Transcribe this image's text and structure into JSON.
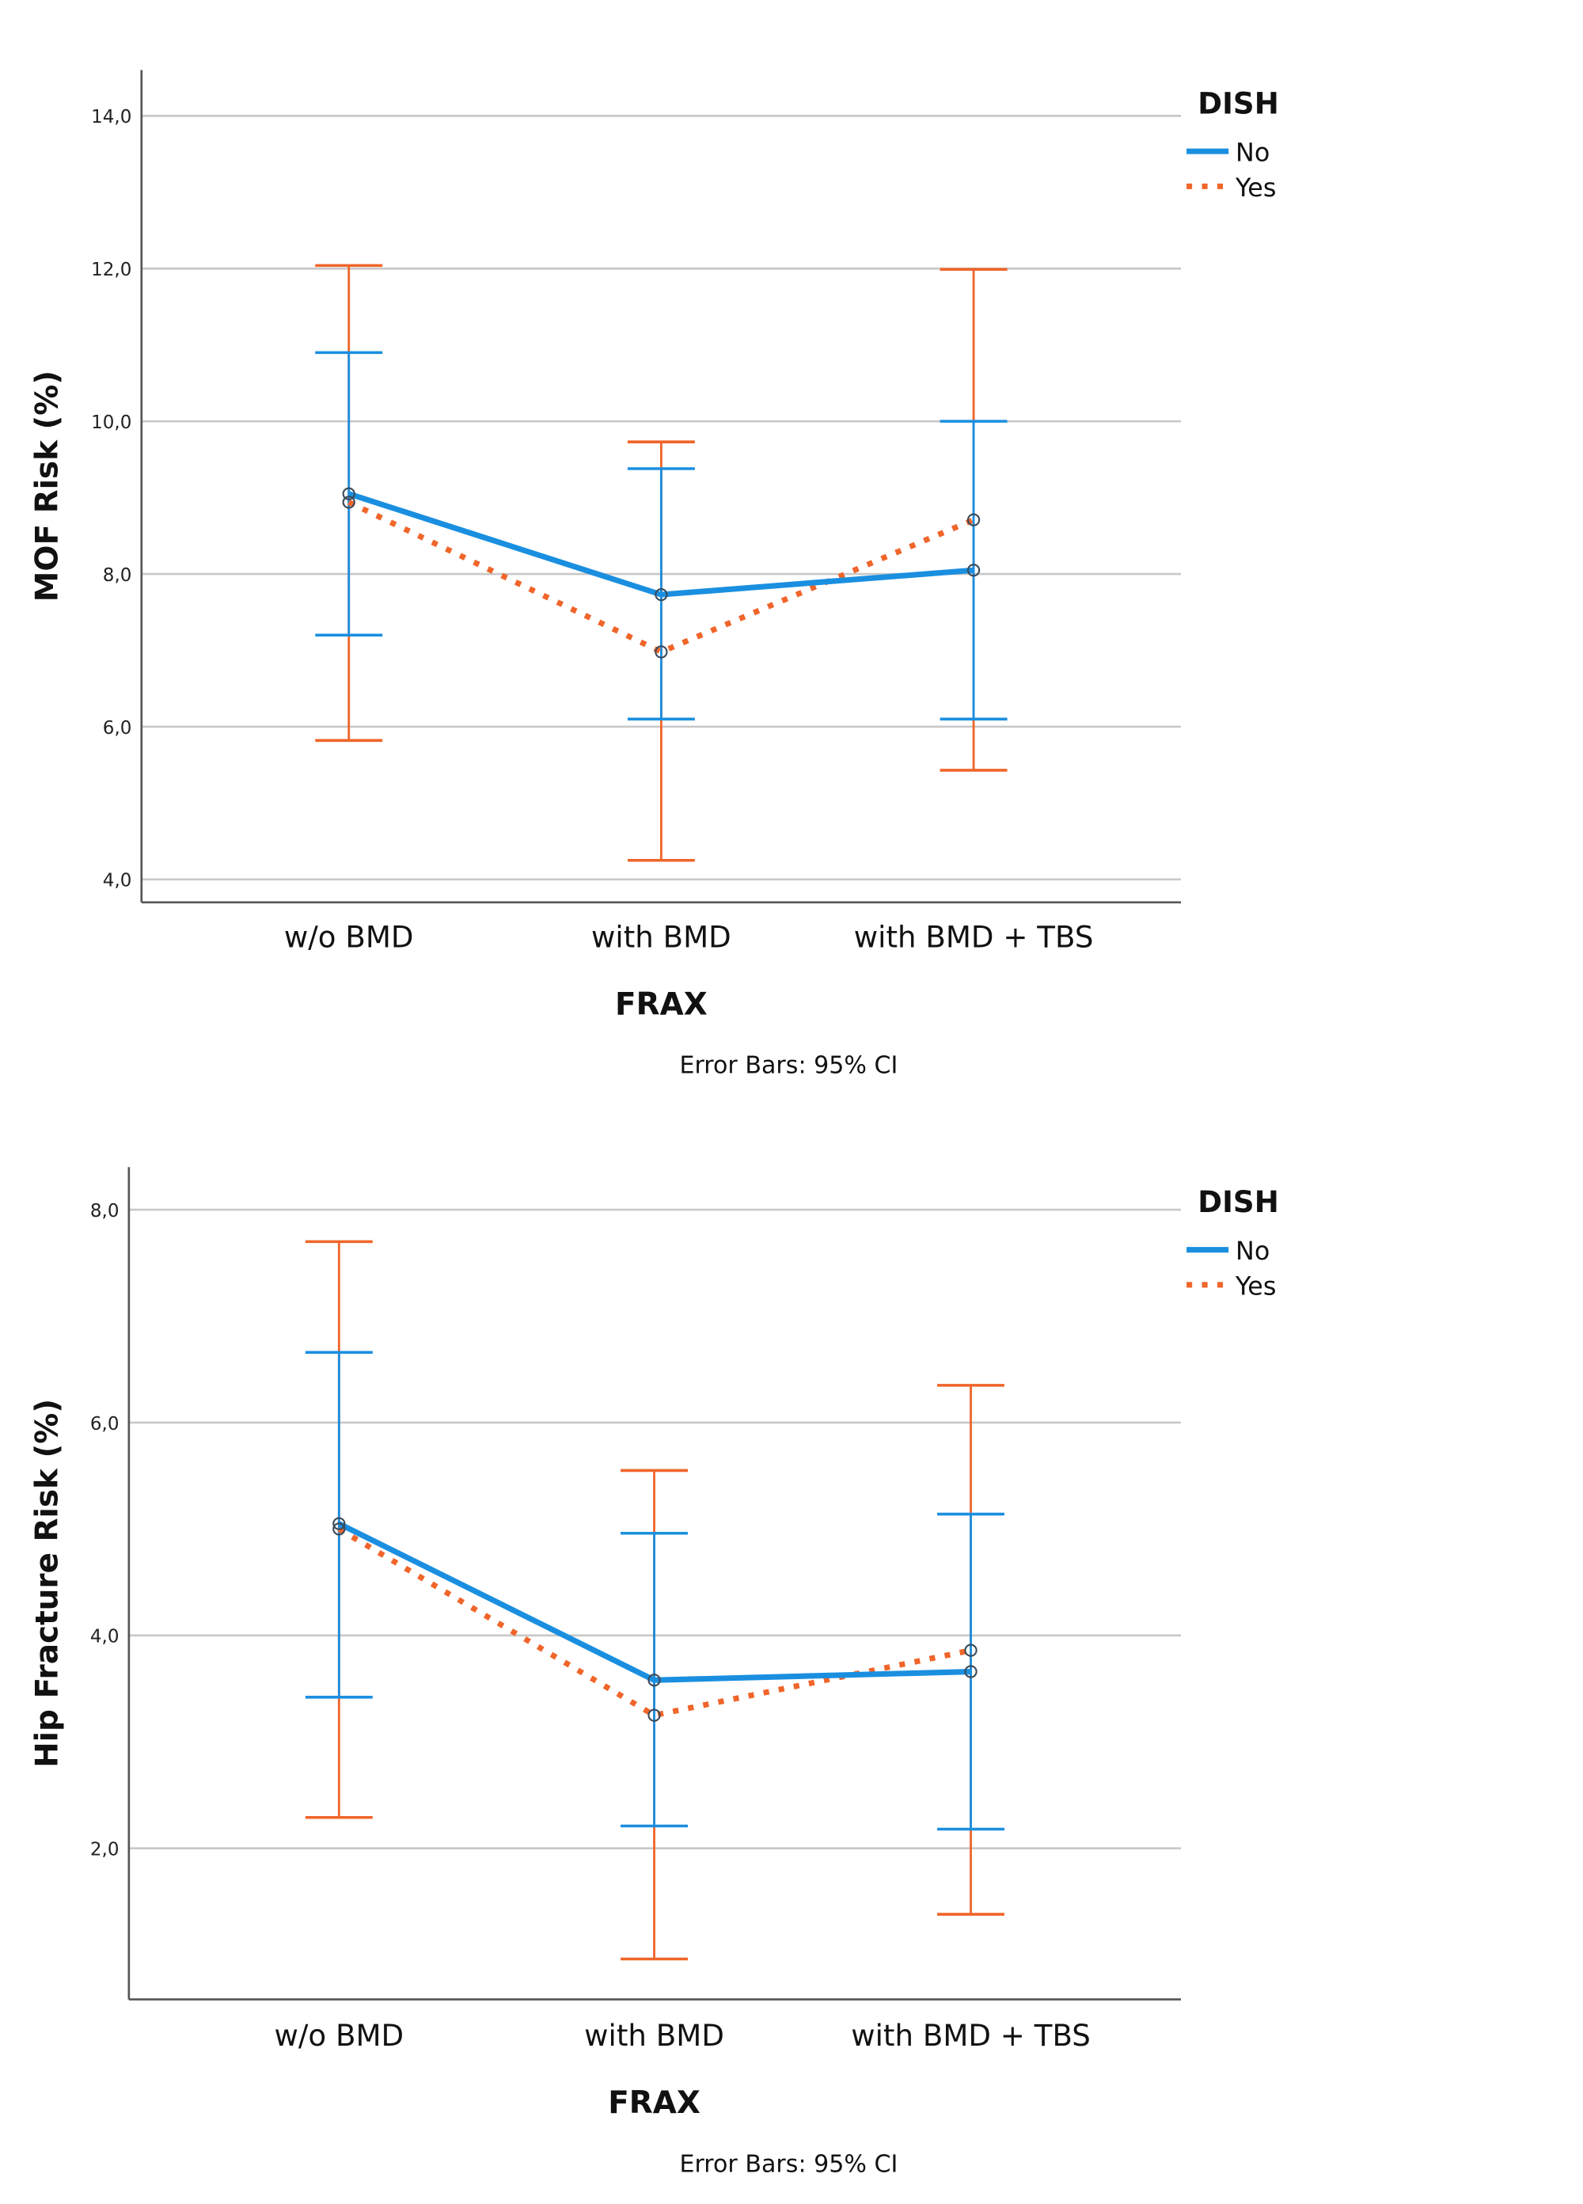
{
  "colors": {
    "no": "#1a8fe0",
    "yes": "#f0652a",
    "grid": "#c8c8c8",
    "axis": "#555555"
  },
  "chart_data": [
    {
      "type": "line",
      "title": "",
      "xlabel": "FRAX",
      "ylabel": "MOF Risk (%)",
      "note": "Error Bars: 95% CI",
      "categories": [
        "w/o BMD",
        "with BMD",
        "with BMD + TBS"
      ],
      "ylim": [
        3.7,
        14.6
      ],
      "yticks": [
        4,
        6,
        8,
        10,
        12,
        14
      ],
      "ytick_labels": [
        "4,0",
        "6,0",
        "8,0",
        "10,0",
        "12,0",
        "14,0"
      ],
      "grid": true,
      "legend": {
        "title": "DISH",
        "placement": "top-right"
      },
      "series": [
        {
          "name": "No",
          "style": "solid",
          "values": [
            9.05,
            7.73,
            8.05
          ],
          "ci_low": [
            7.2,
            6.1,
            6.1
          ],
          "ci_high": [
            10.9,
            9.38,
            10.0
          ]
        },
        {
          "name": "Yes",
          "style": "dotted",
          "values": [
            8.94,
            6.98,
            8.71
          ],
          "ci_low": [
            5.82,
            4.25,
            5.43
          ],
          "ci_high": [
            12.04,
            9.73,
            11.99
          ]
        }
      ]
    },
    {
      "type": "line",
      "title": "",
      "xlabel": "FRAX",
      "ylabel": "Hip Fracture Risk (%)",
      "note": "Error Bars: 95% CI",
      "categories": [
        "w/o BMD",
        "with BMD",
        "with BMD + TBS"
      ],
      "ylim": [
        0.58,
        8.4
      ],
      "yticks": [
        2,
        4,
        6,
        8
      ],
      "ytick_labels": [
        "2,0",
        "4,0",
        "6,0",
        "8,0"
      ],
      "grid": true,
      "legend": {
        "title": "DISH",
        "placement": "top-right"
      },
      "series": [
        {
          "name": "No",
          "style": "solid",
          "values": [
            5.05,
            3.58,
            3.66
          ],
          "ci_low": [
            3.42,
            2.21,
            2.18
          ],
          "ci_high": [
            6.66,
            4.96,
            5.14
          ]
        },
        {
          "name": "Yes",
          "style": "dotted",
          "values": [
            5.0,
            3.25,
            3.86
          ],
          "ci_low": [
            2.29,
            0.96,
            1.38
          ],
          "ci_high": [
            7.7,
            5.55,
            6.35
          ]
        }
      ]
    }
  ]
}
